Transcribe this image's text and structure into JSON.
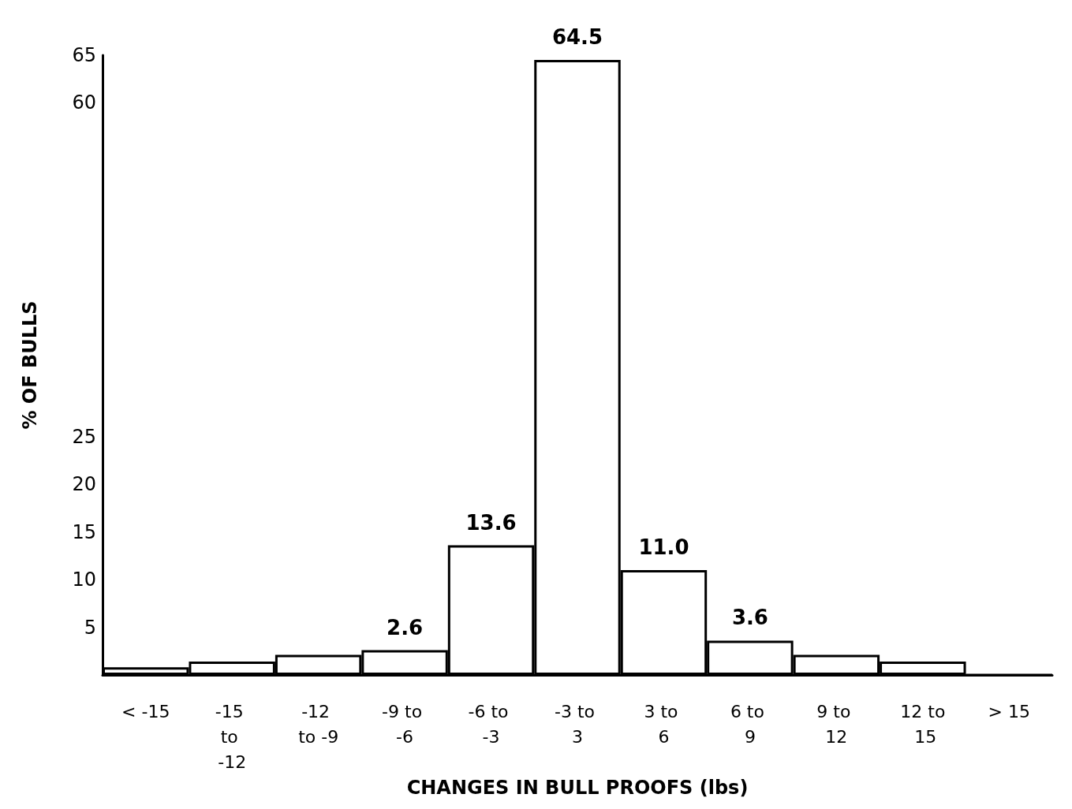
{
  "chart_data": {
    "type": "bar",
    "xlabel": "CHANGES IN BULL PROOFS (lbs)",
    "ylabel": "% OF BULLS",
    "categories": [
      "< -15",
      "-15 to -12",
      "-12 to -9",
      "-9 to -6",
      "-6 to -3",
      "-3 to 3",
      "3 to 6",
      "6 to 9",
      "9 to 12",
      "12 to 15",
      "> 15"
    ],
    "values": [
      0.8,
      1.4,
      2.1,
      2.6,
      13.6,
      64.5,
      11.0,
      3.6,
      2.1,
      1.4,
      0
    ],
    "value_labels": [
      null,
      null,
      null,
      "2.6",
      "13.6",
      "64.5",
      "11.0",
      "3.6",
      null,
      null,
      null
    ],
    "color": "#ffffff",
    "ylim": [
      0,
      65
    ],
    "yticks": [
      5,
      10,
      15,
      20,
      25,
      60,
      65
    ],
    "grid": false
  }
}
